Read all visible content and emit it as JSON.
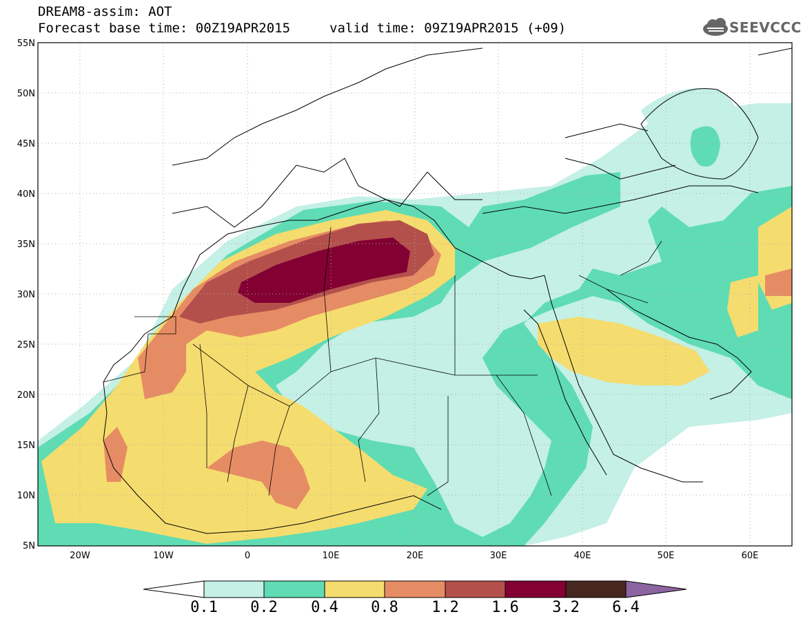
{
  "header": {
    "title": "DREAM8-assim: AOT",
    "base_time": "Forecast base time: 00Z19APR2015",
    "valid_time": "valid time: 09Z19APR2015 (+09)",
    "logo_text": "SEEVCCC"
  },
  "map": {
    "lon_range": [
      -25,
      65
    ],
    "lat_range": [
      5,
      55
    ],
    "lat_ticks": [
      "55N",
      "50N",
      "45N",
      "40N",
      "35N",
      "30N",
      "25N",
      "20N",
      "15N",
      "10N",
      "5N"
    ],
    "lon_ticks": [
      "20W",
      "10W",
      "0",
      "10E",
      "20E",
      "30E",
      "40E",
      "50E",
      "60E"
    ],
    "grid": "dotted"
  },
  "colorbar": {
    "labels": [
      "0.1",
      "0.2",
      "0.4",
      "0.8",
      "1.2",
      "1.6",
      "3.2",
      "6.4"
    ],
    "colors": [
      "#ffffff",
      "#c4f0e6",
      "#5fdcb4",
      "#f5dc6e",
      "#e68c64",
      "#b4504b",
      "#820032",
      "#46281e",
      "#8c64a0"
    ]
  }
}
